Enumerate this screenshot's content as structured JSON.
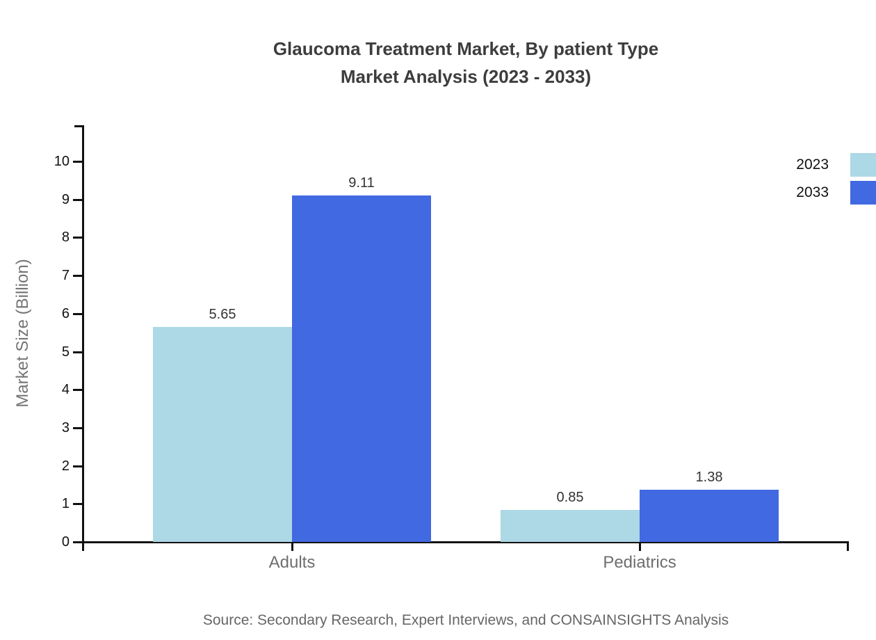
{
  "header": {
    "title_line1": "Glaucoma Treatment Market, By patient Type",
    "title_line2": "Market Analysis (2023 - 2033)"
  },
  "footer": {
    "source": "Source: Secondary Research, Expert Interviews, and CONSAINSIGHTS Analysis"
  },
  "colors": {
    "series_2023": "#ADD8E6",
    "series_2033": "#4169E1",
    "axis": "#111111",
    "title_text": "#3d3d3d",
    "muted_text": "#6e6e6e"
  },
  "chart_data": {
    "type": "bar",
    "title": "Glaucoma Treatment Market, By patient Type Market Analysis (2023 - 2033)",
    "categories": [
      "Adults",
      "Pediatrics"
    ],
    "series": [
      {
        "name": "2023",
        "color": "#ADD8E6",
        "values": [
          5.65,
          0.85
        ]
      },
      {
        "name": "2033",
        "color": "#4169E1",
        "values": [
          9.11,
          1.38
        ]
      }
    ],
    "xlabel": "",
    "ylabel": "Market Size (Billion)",
    "ylim": [
      0,
      10
    ],
    "yticks": [
      0,
      1,
      2,
      3,
      4,
      5,
      6,
      7,
      8,
      9,
      10
    ],
    "grid": false,
    "legend_position": "top-right",
    "value_labels": [
      "5.65",
      "9.11",
      "0.85",
      "1.38"
    ]
  }
}
